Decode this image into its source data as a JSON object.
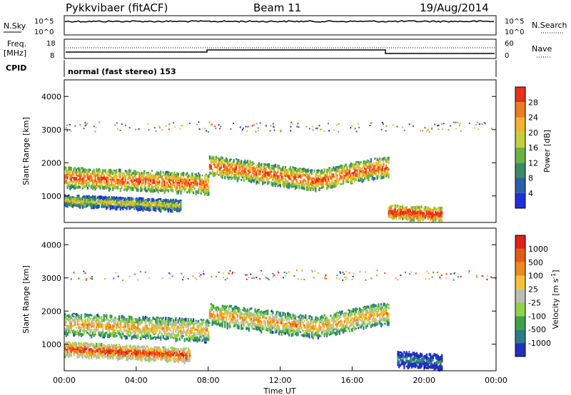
{
  "header": {
    "station": "Pykkvibaer (fitACF)",
    "beam": "Beam 11",
    "date": "19/Aug/2014"
  },
  "status_panels": {
    "nsky_label": "N.Sky",
    "nsky_top": "10^5",
    "nsky_bottom": "10^0",
    "nsearch_label": "N.Search",
    "nsearch_top": "10^5",
    "nsearch_bottom": "10^0",
    "freq_label": "Freq.",
    "freq_unit": "[MHz]",
    "freq_top": "18",
    "freq_bottom": "8",
    "nave_top": "60",
    "nave_bottom": "0",
    "nave_label": "Nave",
    "cpid_label": "CPID",
    "cpid_text": "normal (fast stereo) 153"
  },
  "chart_data": [
    {
      "type": "heatmap",
      "name": "power",
      "ylabel": "Slant Range [km]",
      "ylim": [
        200,
        4500
      ],
      "yticks": [
        "1000",
        "2000",
        "3000",
        "4000"
      ],
      "xlim": [
        0,
        24
      ],
      "colorbar_label": "Power [dB]",
      "colorbar_ticks": [
        "4",
        "8",
        "12",
        "16",
        "20",
        "24",
        "28"
      ],
      "colors": [
        "#1f2fe0",
        "#2c5fa8",
        "#3a8a63",
        "#6bb244",
        "#c4cf3a",
        "#f2b52a",
        "#f07a1e",
        "#e8301a"
      ],
      "bands": [
        {
          "x": [
            0,
            8,
            8,
            14,
            17,
            18
          ],
          "y": [
            1600,
            1400,
            1950,
            1500,
            1850,
            1900
          ],
          "width": 300,
          "level": 5
        },
        {
          "x": [
            0,
            6.5
          ],
          "y": [
            900,
            750
          ],
          "width": 160,
          "level": 3
        },
        {
          "x": [
            18,
            21
          ],
          "y": [
            560,
            480
          ],
          "width": 200,
          "level": 6
        }
      ]
    },
    {
      "type": "heatmap",
      "name": "velocity",
      "ylabel": "Slant Range [km]",
      "ylim": [
        200,
        4500
      ],
      "yticks": [
        "1000",
        "2000",
        "3000",
        "4000"
      ],
      "xlim": [
        0,
        24
      ],
      "xticks": [
        "00:00",
        "04:00",
        "08:00",
        "12:00",
        "16:00",
        "20:00",
        "00:00"
      ],
      "xlabel": "Time UT",
      "colorbar_label": "Velocity [m s-1]",
      "colorbar_ticks": [
        "1000",
        "500",
        "100",
        "25",
        "-25",
        "-100",
        "-500",
        "-1000"
      ],
      "colors": [
        "#2030c0",
        "#2f7a8a",
        "#3fa04a",
        "#8fd34b",
        "#bdbdb8",
        "#f1c232",
        "#f08a1c",
        "#e85a12",
        "#e0201a"
      ],
      "bands": [
        {
          "x": [
            0,
            8,
            8,
            14,
            17,
            18
          ],
          "y": [
            1650,
            1450,
            1950,
            1550,
            1900,
            1950
          ],
          "width": 320,
          "level": 4
        },
        {
          "x": [
            0,
            7
          ],
          "y": [
            900,
            700
          ],
          "width": 200,
          "level": 6
        },
        {
          "x": [
            18.5,
            21
          ],
          "y": [
            600,
            500
          ],
          "width": 220,
          "level": 0
        }
      ]
    }
  ]
}
